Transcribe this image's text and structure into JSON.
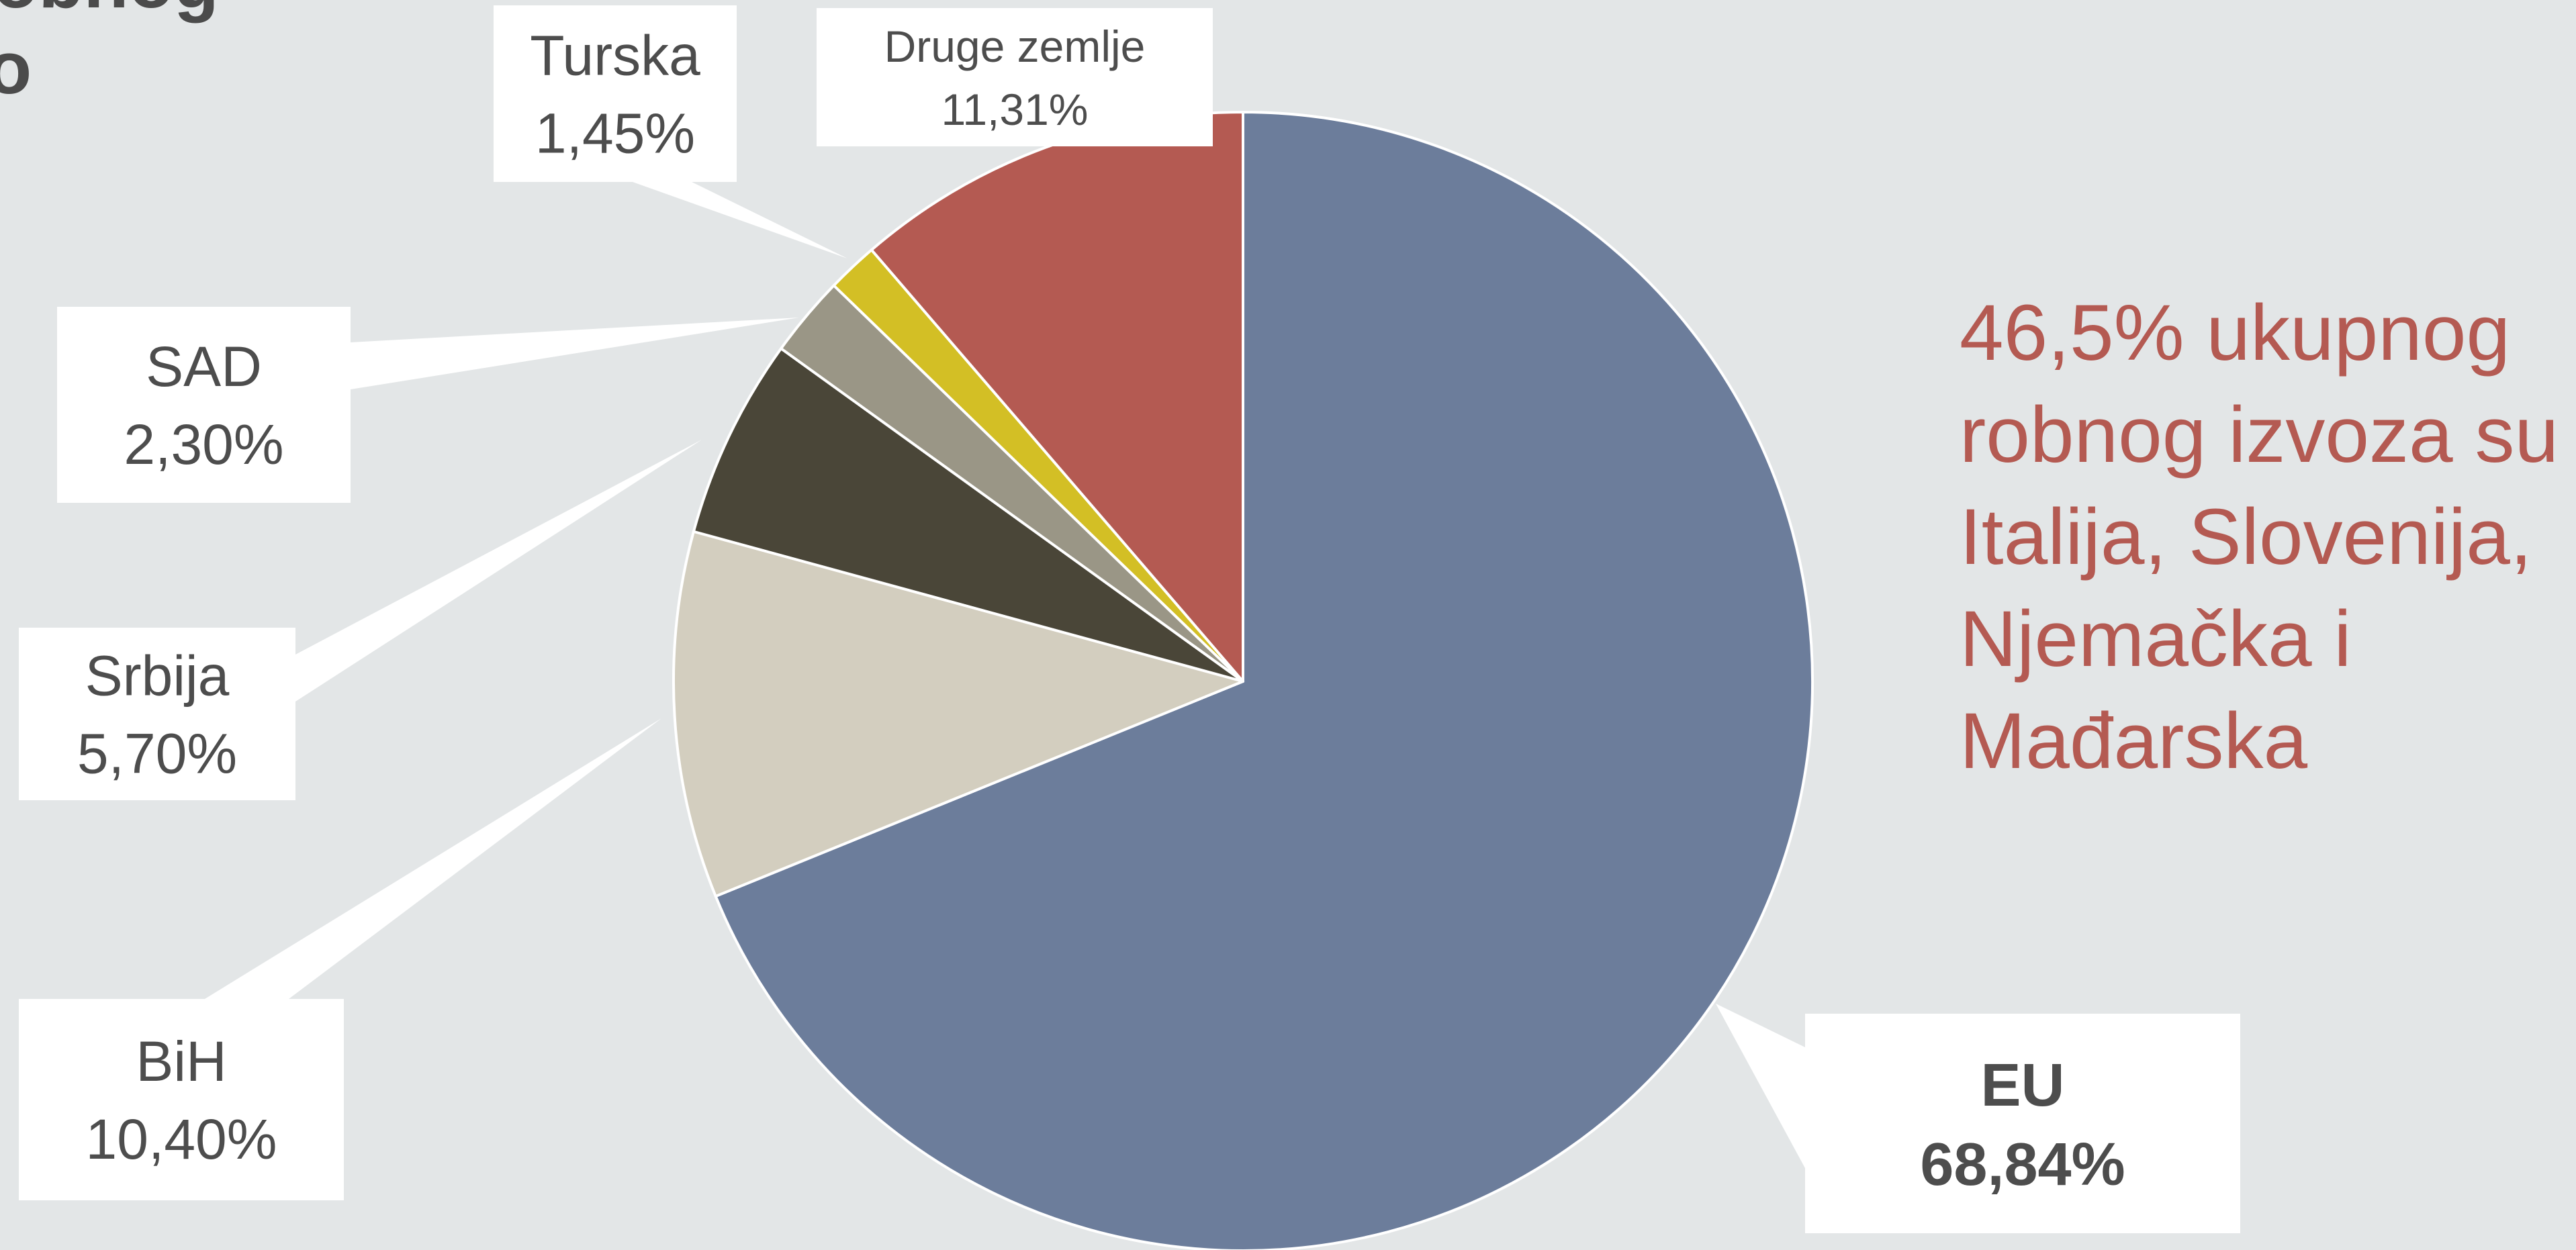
{
  "title_fragment": {
    "line1": "obnog",
    "line2": "o"
  },
  "chart_data": {
    "type": "pie",
    "start_angle_deg": 0,
    "direction": "clockwise",
    "slices": [
      {
        "label": "EU",
        "value": 68.84,
        "display": "68,84%",
        "color": "#6c7d9b",
        "label_bold": true
      },
      {
        "label": "BiH",
        "value": 10.4,
        "display": "10,40%",
        "color": "#d3cebf",
        "label_bold": false
      },
      {
        "label": "Srbija",
        "value": 5.7,
        "display": "5,70%",
        "color": "#4a4638",
        "label_bold": false
      },
      {
        "label": "SAD",
        "value": 2.3,
        "display": "2,30%",
        "color": "#9a9686",
        "label_bold": false
      },
      {
        "label": "Turska",
        "value": 1.45,
        "display": "1,45%",
        "color": "#d3bf25",
        "label_bold": false
      },
      {
        "label": "Druge zemlje",
        "value": 11.31,
        "display": "11,31%",
        "color": "#b45a52",
        "label_bold": false
      }
    ]
  },
  "note": {
    "text": "46,5% ukupnog robnog izvoza su Italija, Slovenija, Njemačka i Mađarska",
    "color": "#b45a52"
  }
}
